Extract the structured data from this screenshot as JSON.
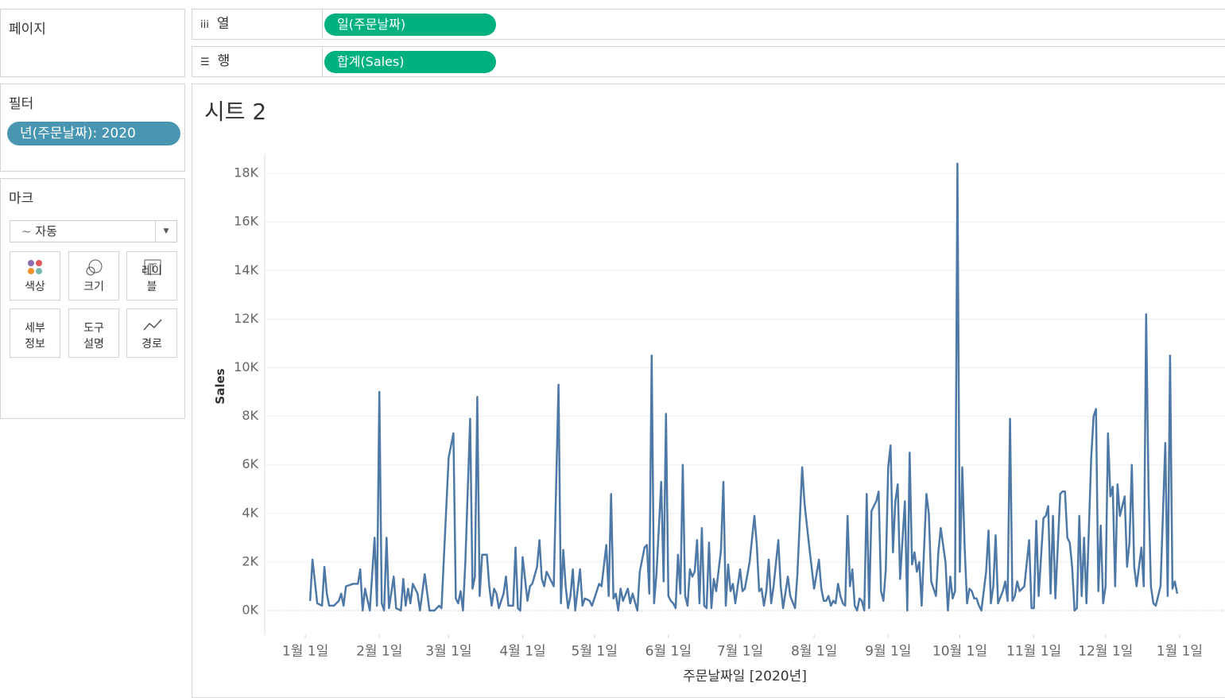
{
  "sidebar": {
    "pages_title": "페이지",
    "filters_title": "필터",
    "filter_pill": "년(주문날짜): 2020",
    "marks_title": "마크",
    "mark_type": "자동",
    "mark_buttons": [
      "색상",
      "크기",
      "레이블",
      "세부 정보",
      "도구 설명",
      "경로"
    ]
  },
  "shelves": {
    "columns_label": "열",
    "columns_pill": "일(주문날짜)",
    "rows_label": "행",
    "rows_pill": "합계(Sales)"
  },
  "chart_data": {
    "type": "line",
    "title": "시트 2",
    "y_label": "Sales",
    "x_label": "주문날짜일 [2020년]",
    "color": "#4e79a7",
    "grid": true,
    "ylim": [
      -1000,
      18800
    ],
    "yticks": [
      {
        "value": 0,
        "label": "0K"
      },
      {
        "value": 2000,
        "label": "2K"
      },
      {
        "value": 4000,
        "label": "4K"
      },
      {
        "value": 6000,
        "label": "6K"
      },
      {
        "value": 8000,
        "label": "8K"
      },
      {
        "value": 10000,
        "label": "10K"
      },
      {
        "value": 12000,
        "label": "12K"
      },
      {
        "value": 14000,
        "label": "14K"
      },
      {
        "value": 16000,
        "label": "16K"
      },
      {
        "value": 18000,
        "label": "18K"
      }
    ],
    "xlim": [
      "2019-12-15",
      "2021-01-20"
    ],
    "xticks": [
      {
        "value": "2020-01-01",
        "label": "1월 1일"
      },
      {
        "value": "2020-02-01",
        "label": "2월 1일"
      },
      {
        "value": "2020-03-01",
        "label": "3월 1일"
      },
      {
        "value": "2020-04-01",
        "label": "4월 1일"
      },
      {
        "value": "2020-05-01",
        "label": "5월 1일"
      },
      {
        "value": "2020-06-01",
        "label": "6월 1일"
      },
      {
        "value": "2020-07-01",
        "label": "7월 1일"
      },
      {
        "value": "2020-08-01",
        "label": "8월 1일"
      },
      {
        "value": "2020-09-01",
        "label": "9월 1일"
      },
      {
        "value": "2020-10-01",
        "label": "10월 1일"
      },
      {
        "value": "2020-11-01",
        "label": "11월 1일"
      },
      {
        "value": "2020-12-01",
        "label": "12월 1일"
      },
      {
        "value": "2021-01-01",
        "label": "1월 1일"
      }
    ],
    "x": [
      "2020-01-03",
      "2020-01-04",
      "2020-01-06",
      "2020-01-08",
      "2020-01-09",
      "2020-01-10",
      "2020-01-11",
      "2020-01-13",
      "2020-01-15",
      "2020-01-16",
      "2020-01-17",
      "2020-01-18",
      "2020-01-21",
      "2020-01-23",
      "2020-01-24",
      "2020-01-25",
      "2020-01-26",
      "2020-01-28",
      "2020-01-30",
      "2020-01-31",
      "2020-02-01",
      "2020-02-02",
      "2020-02-03",
      "2020-02-04",
      "2020-02-05",
      "2020-02-07",
      "2020-02-08",
      "2020-02-10",
      "2020-02-11",
      "2020-02-12",
      "2020-02-13",
      "2020-02-14",
      "2020-02-15",
      "2020-02-17",
      "2020-02-18",
      "2020-02-20",
      "2020-02-22",
      "2020-02-24",
      "2020-02-26",
      "2020-02-27",
      "2020-03-01",
      "2020-03-03",
      "2020-03-04",
      "2020-03-05",
      "2020-03-06",
      "2020-03-07",
      "2020-03-08",
      "2020-03-10",
      "2020-03-11",
      "2020-03-12",
      "2020-03-13",
      "2020-03-14",
      "2020-03-15",
      "2020-03-17",
      "2020-03-18",
      "2020-03-19",
      "2020-03-20",
      "2020-03-21",
      "2020-03-22",
      "2020-03-23",
      "2020-03-24",
      "2020-03-25",
      "2020-03-26",
      "2020-03-28",
      "2020-03-29",
      "2020-03-30",
      "2020-03-31",
      "2020-04-01",
      "2020-04-03",
      "2020-04-04",
      "2020-04-05",
      "2020-04-07",
      "2020-04-08",
      "2020-04-09",
      "2020-04-10",
      "2020-04-11",
      "2020-04-14",
      "2020-04-16",
      "2020-04-17",
      "2020-04-18",
      "2020-04-19",
      "2020-04-20",
      "2020-04-21",
      "2020-04-22",
      "2020-04-23",
      "2020-04-25",
      "2020-04-26",
      "2020-04-27",
      "2020-04-29",
      "2020-04-30",
      "2020-05-01",
      "2020-05-03",
      "2020-05-04",
      "2020-05-06",
      "2020-05-07",
      "2020-05-08",
      "2020-05-09",
      "2020-05-10",
      "2020-05-11",
      "2020-05-12",
      "2020-05-13",
      "2020-05-15",
      "2020-05-16",
      "2020-05-17",
      "2020-05-19",
      "2020-05-20",
      "2020-05-22",
      "2020-05-23",
      "2020-05-24",
      "2020-05-25",
      "2020-05-26",
      "2020-05-27",
      "2020-05-29",
      "2020-05-30",
      "2020-05-31",
      "2020-06-01",
      "2020-06-02",
      "2020-06-03",
      "2020-06-04",
      "2020-06-05",
      "2020-06-06",
      "2020-06-07",
      "2020-06-08",
      "2020-06-09",
      "2020-06-10",
      "2020-06-11",
      "2020-06-12",
      "2020-06-13",
      "2020-06-14",
      "2020-06-15",
      "2020-06-16",
      "2020-06-17",
      "2020-06-18",
      "2020-06-19",
      "2020-06-20",
      "2020-06-21",
      "2020-06-23",
      "2020-06-24",
      "2020-06-25",
      "2020-06-26",
      "2020-06-27",
      "2020-06-28",
      "2020-06-29",
      "2020-06-30",
      "2020-07-01",
      "2020-07-02",
      "2020-07-03",
      "2020-07-05",
      "2020-07-07",
      "2020-07-08",
      "2020-07-09",
      "2020-07-10",
      "2020-07-11",
      "2020-07-12",
      "2020-07-13",
      "2020-07-14",
      "2020-07-15",
      "2020-07-17",
      "2020-07-18",
      "2020-07-19",
      "2020-07-21",
      "2020-07-22",
      "2020-07-24",
      "2020-07-25",
      "2020-07-27",
      "2020-07-28",
      "2020-07-30",
      "2020-08-01",
      "2020-08-03",
      "2020-08-04",
      "2020-08-05",
      "2020-08-06",
      "2020-08-07",
      "2020-08-08",
      "2020-08-09",
      "2020-08-10",
      "2020-08-11",
      "2020-08-12",
      "2020-08-13",
      "2020-08-14",
      "2020-08-15",
      "2020-08-16",
      "2020-08-17",
      "2020-08-18",
      "2020-08-19",
      "2020-08-20",
      "2020-08-21",
      "2020-08-22",
      "2020-08-23",
      "2020-08-24",
      "2020-08-25",
      "2020-08-27",
      "2020-08-28",
      "2020-08-29",
      "2020-08-30",
      "2020-08-31",
      "2020-09-01",
      "2020-09-02",
      "2020-09-03",
      "2020-09-04",
      "2020-09-05",
      "2020-09-06",
      "2020-09-08",
      "2020-09-09",
      "2020-09-10",
      "2020-09-11",
      "2020-09-12",
      "2020-09-13",
      "2020-09-14",
      "2020-09-15",
      "2020-09-17",
      "2020-09-18",
      "2020-09-19",
      "2020-09-21",
      "2020-09-22",
      "2020-09-23",
      "2020-09-25",
      "2020-09-26",
      "2020-09-27",
      "2020-09-28",
      "2020-09-29",
      "2020-09-30",
      "2020-10-01",
      "2020-10-02",
      "2020-10-03",
      "2020-10-04",
      "2020-10-05",
      "2020-10-06",
      "2020-10-07",
      "2020-10-08",
      "2020-10-09",
      "2020-10-10",
      "2020-10-12",
      "2020-10-13",
      "2020-10-14",
      "2020-10-15",
      "2020-10-16",
      "2020-10-17",
      "2020-10-19",
      "2020-10-20",
      "2020-10-21",
      "2020-10-22",
      "2020-10-23",
      "2020-10-24",
      "2020-10-25",
      "2020-10-26",
      "2020-10-28",
      "2020-10-30",
      "2020-10-31",
      "2020-11-01",
      "2020-11-02",
      "2020-11-03",
      "2020-11-04",
      "2020-11-05",
      "2020-11-06",
      "2020-11-07",
      "2020-11-08",
      "2020-11-09",
      "2020-11-10",
      "2020-11-12",
      "2020-11-13",
      "2020-11-14",
      "2020-11-15",
      "2020-11-16",
      "2020-11-17",
      "2020-11-18",
      "2020-11-19",
      "2020-11-20",
      "2020-11-21",
      "2020-11-22",
      "2020-11-23",
      "2020-11-25",
      "2020-11-26",
      "2020-11-27",
      "2020-11-28",
      "2020-11-29",
      "2020-11-30",
      "2020-12-01",
      "2020-12-02",
      "2020-12-03",
      "2020-12-04",
      "2020-12-05",
      "2020-12-06",
      "2020-12-07",
      "2020-12-08",
      "2020-12-09",
      "2020-12-10",
      "2020-12-11",
      "2020-12-12",
      "2020-12-13",
      "2020-12-14",
      "2020-12-16",
      "2020-12-17",
      "2020-12-18",
      "2020-12-19",
      "2020-12-20",
      "2020-12-21",
      "2020-12-22",
      "2020-12-24",
      "2020-12-26",
      "2020-12-27",
      "2020-12-28",
      "2020-12-29",
      "2020-12-30",
      "2020-12-31"
    ],
    "values": [
      400,
      2100,
      300,
      200,
      1800,
      700,
      200,
      200,
      400,
      700,
      200,
      1000,
      1100,
      1100,
      1700,
      0,
      900,
      0,
      3000,
      200,
      9000,
      300,
      0,
      3000,
      100,
      1400,
      100,
      0,
      1300,
      200,
      900,
      300,
      1100,
      700,
      0,
      1500,
      0,
      0,
      200,
      100,
      6300,
      7300,
      500,
      300,
      800,
      0,
      2000,
      7900,
      900,
      1400,
      8800,
      600,
      2300,
      2300,
      1000,
      200,
      900,
      700,
      100,
      400,
      700,
      1400,
      200,
      200,
      2600,
      100,
      0,
      2200,
      400,
      1000,
      1100,
      1800,
      2900,
      1300,
      1000,
      1600,
      1000,
      9300,
      300,
      2500,
      1000,
      100,
      600,
      1700,
      0,
      1700,
      200,
      500,
      400,
      200,
      500,
      1100,
      1000,
      2700,
      600,
      4800,
      500,
      700,
      0,
      900,
      400,
      900,
      300,
      700,
      0,
      1600,
      2600,
      2700,
      700,
      10500,
      300,
      1500,
      5300,
      1200,
      8100,
      600,
      400,
      300,
      100,
      2300,
      700,
      6000,
      600,
      200,
      1700,
      1400,
      1600,
      2900,
      300,
      3400,
      200,
      100,
      2800,
      100,
      1300,
      800,
      2500,
      5300,
      200,
      1900,
      800,
      1100,
      300,
      1000,
      1700,
      800,
      900,
      2000,
      3900,
      2700,
      800,
      900,
      200,
      800,
      2100,
      300,
      1000,
      2900,
      1000,
      100,
      1400,
      600,
      100,
      1500,
      5900,
      4400,
      2600,
      900,
      2100,
      900,
      400,
      400,
      600,
      200,
      400,
      300,
      1100,
      600,
      300,
      200,
      3900,
      1000,
      1700,
      200,
      0,
      500,
      400,
      0,
      4800,
      100,
      4100,
      4500,
      4900,
      800,
      400,
      1700,
      5900,
      6800,
      2400,
      4500,
      5200,
      1300,
      4500,
      0,
      6500,
      1900,
      2400,
      1600,
      2000,
      200,
      4800,
      4000,
      1200,
      600,
      2400,
      3400,
      2000,
      0,
      1400,
      500,
      800,
      18400,
      1600,
      5900,
      2600,
      300,
      900,
      800,
      500,
      500,
      200,
      0,
      1600,
      3300,
      300,
      1000,
      3100,
      300,
      800,
      1200,
      400,
      7900,
      400,
      600,
      1200,
      800,
      1000,
      2900,
      100,
      100,
      3700,
      600,
      2200,
      3800,
      3900,
      4300,
      700,
      3900,
      500,
      4800,
      4900,
      4900,
      3000,
      2800,
      1800,
      0,
      100,
      3900,
      600,
      3000,
      300,
      6300,
      8000,
      8300,
      800,
      3500,
      300,
      1000,
      7300,
      4700,
      5100,
      1000,
      5200,
      3900,
      4300,
      4700,
      1800,
      2800,
      6000,
      1800,
      1000,
      2600,
      1000,
      12200,
      5000,
      1000,
      300,
      200,
      1000,
      6900,
      600,
      10500,
      900,
      1200,
      700
    ]
  }
}
